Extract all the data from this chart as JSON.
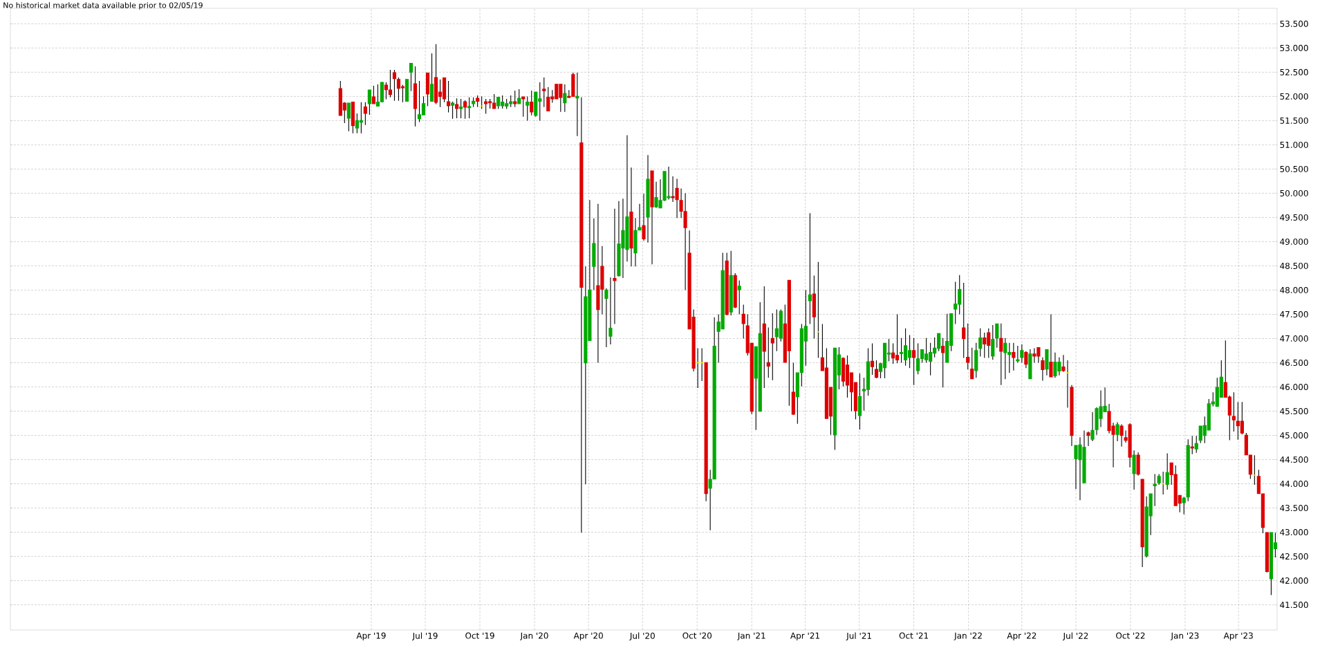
{
  "chart_data": {
    "type": "candlestick",
    "annotations": [
      "No historical market data available prior to 02/05/19"
    ],
    "grid": true,
    "xlim": [
      "2017-08-01",
      "2023-06-05"
    ],
    "ylim": [
      40.98,
      53.82
    ],
    "xticks": [
      {
        "value": "2019-04-01",
        "label": "Apr '19"
      },
      {
        "value": "2019-07-01",
        "label": "Jul '19"
      },
      {
        "value": "2019-10-01",
        "label": "Oct '19"
      },
      {
        "value": "2020-01-01",
        "label": "Jan '20"
      },
      {
        "value": "2020-04-01",
        "label": "Apr '20"
      },
      {
        "value": "2020-07-01",
        "label": "Jul '20"
      },
      {
        "value": "2020-10-01",
        "label": "Oct '20"
      },
      {
        "value": "2021-01-01",
        "label": "Jan '21"
      },
      {
        "value": "2021-04-01",
        "label": "Apr '21"
      },
      {
        "value": "2021-07-01",
        "label": "Jul '21"
      },
      {
        "value": "2021-10-01",
        "label": "Oct '21"
      },
      {
        "value": "2022-01-01",
        "label": "Jan '22"
      },
      {
        "value": "2022-04-01",
        "label": "Apr '22"
      },
      {
        "value": "2022-07-01",
        "label": "Jul '22"
      },
      {
        "value": "2022-10-01",
        "label": "Oct '22"
      },
      {
        "value": "2023-01-01",
        "label": "Jan '23"
      },
      {
        "value": "2023-04-01",
        "label": "Apr '23"
      }
    ],
    "yticks": [
      {
        "value": 41.5,
        "label": "41.500"
      },
      {
        "value": 42.0,
        "label": "42.000"
      },
      {
        "value": 42.5,
        "label": "42.500"
      },
      {
        "value": 43.0,
        "label": "43.000"
      },
      {
        "value": 43.5,
        "label": "43.500"
      },
      {
        "value": 44.0,
        "label": "44.000"
      },
      {
        "value": 44.5,
        "label": "44.500"
      },
      {
        "value": 45.0,
        "label": "45.000"
      },
      {
        "value": 45.5,
        "label": "45.500"
      },
      {
        "value": 46.0,
        "label": "46.000"
      },
      {
        "value": 46.5,
        "label": "46.500"
      },
      {
        "value": 47.0,
        "label": "47.000"
      },
      {
        "value": 47.5,
        "label": "47.500"
      },
      {
        "value": 48.0,
        "label": "48.000"
      },
      {
        "value": 48.5,
        "label": "48.500"
      },
      {
        "value": 49.0,
        "label": "49.000"
      },
      {
        "value": 49.5,
        "label": "49.500"
      },
      {
        "value": 50.0,
        "label": "50.000"
      },
      {
        "value": 50.5,
        "label": "50.500"
      },
      {
        "value": 51.0,
        "label": "51.000"
      },
      {
        "value": 51.5,
        "label": "51.500"
      },
      {
        "value": 52.0,
        "label": "52.000"
      },
      {
        "value": 52.5,
        "label": "52.500"
      },
      {
        "value": 53.0,
        "label": "53.000"
      },
      {
        "value": 53.5,
        "label": "53.500"
      }
    ],
    "x": [
      "2019-02-08",
      "2019-02-15",
      "2019-02-22",
      "2019-03-01",
      "2019-03-08",
      "2019-03-15",
      "2019-03-22",
      "2019-03-29",
      "2019-04-05",
      "2019-04-12",
      "2019-04-19",
      "2019-04-26",
      "2019-05-03",
      "2019-05-10",
      "2019-05-17",
      "2019-05-24",
      "2019-05-31",
      "2019-06-07",
      "2019-06-14",
      "2019-06-21",
      "2019-06-28",
      "2019-07-05",
      "2019-07-12",
      "2019-07-19",
      "2019-07-26",
      "2019-08-02",
      "2019-08-09",
      "2019-08-16",
      "2019-08-23",
      "2019-08-30",
      "2019-09-06",
      "2019-09-13",
      "2019-09-20",
      "2019-09-27",
      "2019-10-04",
      "2019-10-11",
      "2019-10-18",
      "2019-10-25",
      "2019-11-01",
      "2019-11-08",
      "2019-11-15",
      "2019-11-22",
      "2019-11-29",
      "2019-12-06",
      "2019-12-13",
      "2019-12-20",
      "2019-12-27",
      "2020-01-03",
      "2020-01-10",
      "2020-01-17",
      "2020-01-24",
      "2020-01-31",
      "2020-02-07",
      "2020-02-14",
      "2020-02-21",
      "2020-02-28",
      "2020-03-06",
      "2020-03-13",
      "2020-03-20",
      "2020-03-27",
      "2020-04-03",
      "2020-04-10",
      "2020-04-17",
      "2020-04-24",
      "2020-05-01",
      "2020-05-08",
      "2020-05-15",
      "2020-05-22",
      "2020-05-29",
      "2020-06-05",
      "2020-06-12",
      "2020-06-19",
      "2020-06-26",
      "2020-07-03",
      "2020-07-10",
      "2020-07-17",
      "2020-07-24",
      "2020-07-31",
      "2020-08-07",
      "2020-08-14",
      "2020-08-21",
      "2020-08-28",
      "2020-09-04",
      "2020-09-11",
      "2020-09-18",
      "2020-09-25",
      "2020-10-02",
      "2020-10-09",
      "2020-10-16",
      "2020-10-23",
      "2020-10-30",
      "2020-11-06",
      "2020-11-13",
      "2020-11-20",
      "2020-11-27",
      "2020-12-04",
      "2020-12-11",
      "2020-12-18",
      "2020-12-25",
      "2021-01-01",
      "2021-01-08",
      "2021-01-15",
      "2021-01-22",
      "2021-01-29",
      "2021-02-05",
      "2021-02-12",
      "2021-02-19",
      "2021-02-26",
      "2021-03-05",
      "2021-03-12",
      "2021-03-19",
      "2021-03-26",
      "2021-04-02",
      "2021-04-09",
      "2021-04-16",
      "2021-04-23",
      "2021-04-30",
      "2021-05-07",
      "2021-05-14",
      "2021-05-21",
      "2021-05-28",
      "2021-06-04",
      "2021-06-11",
      "2021-06-18",
      "2021-06-25",
      "2021-07-02",
      "2021-07-09",
      "2021-07-16",
      "2021-07-23",
      "2021-07-30",
      "2021-08-06",
      "2021-08-13",
      "2021-08-20",
      "2021-08-27",
      "2021-09-03",
      "2021-09-10",
      "2021-09-17",
      "2021-09-24",
      "2021-10-01",
      "2021-10-08",
      "2021-10-15",
      "2021-10-22",
      "2021-10-29",
      "2021-11-05",
      "2021-11-12",
      "2021-11-19",
      "2021-11-26",
      "2021-12-03",
      "2021-12-10",
      "2021-12-17",
      "2021-12-24",
      "2021-12-31",
      "2022-01-07",
      "2022-01-14",
      "2022-01-21",
      "2022-01-28",
      "2022-02-04",
      "2022-02-11",
      "2022-02-18",
      "2022-02-25",
      "2022-03-04",
      "2022-03-11",
      "2022-03-18",
      "2022-03-25",
      "2022-04-01",
      "2022-04-08",
      "2022-04-15",
      "2022-04-22",
      "2022-04-29",
      "2022-05-06",
      "2022-05-13",
      "2022-05-20",
      "2022-05-27",
      "2022-06-03",
      "2022-06-10",
      "2022-06-17",
      "2022-06-24",
      "2022-07-01",
      "2022-07-08",
      "2022-07-15",
      "2022-07-22",
      "2022-07-29",
      "2022-08-05",
      "2022-08-12",
      "2022-08-19",
      "2022-08-26",
      "2022-09-02",
      "2022-09-09",
      "2022-09-16",
      "2022-09-23",
      "2022-09-30",
      "2022-10-07",
      "2022-10-14",
      "2022-10-21",
      "2022-10-28",
      "2022-11-04",
      "2022-11-11",
      "2022-11-18",
      "2022-11-25",
      "2022-12-02",
      "2022-12-09",
      "2022-12-16",
      "2022-12-23",
      "2022-12-30",
      "2023-01-06",
      "2023-01-13",
      "2023-01-20",
      "2023-01-27",
      "2023-02-03",
      "2023-02-10",
      "2023-02-17",
      "2023-02-24",
      "2023-03-03",
      "2023-03-10",
      "2023-03-17",
      "2023-03-24",
      "2023-03-31",
      "2023-04-07",
      "2023-04-14",
      "2023-04-21",
      "2023-04-28",
      "2023-05-05",
      "2023-05-12",
      "2023-05-19",
      "2023-05-26",
      "2023-06-02"
    ],
    "ohlc": [
      [
        52.16,
        52.32,
        51.61,
        51.61
      ],
      [
        51.86,
        51.88,
        51.45,
        51.72
      ],
      [
        51.55,
        51.86,
        51.28,
        51.86
      ],
      [
        51.88,
        51.88,
        51.24,
        51.4
      ],
      [
        51.35,
        51.65,
        51.24,
        51.5
      ],
      [
        51.47,
        51.88,
        51.24,
        51.5
      ],
      [
        51.78,
        51.88,
        51.41,
        51.65
      ],
      [
        51.85,
        52.13,
        51.62,
        52.13
      ],
      [
        51.99,
        52.22,
        51.85,
        51.85
      ],
      [
        51.8,
        52.25,
        51.79,
        51.88
      ],
      [
        51.89,
        52.29,
        51.88,
        52.29
      ],
      [
        52.23,
        52.29,
        51.94,
        52.14
      ],
      [
        52.13,
        52.55,
        51.98,
        52.04
      ],
      [
        52.49,
        52.55,
        51.91,
        52.37
      ],
      [
        52.35,
        52.39,
        51.91,
        52.17
      ],
      [
        52.2,
        52.24,
        51.88,
        52.18
      ],
      [
        51.9,
        52.35,
        51.9,
        52.35
      ],
      [
        52.5,
        52.68,
        52.11,
        52.68
      ],
      [
        52.26,
        52.62,
        51.38,
        51.75
      ],
      [
        51.54,
        52.32,
        51.47,
        51.62
      ],
      [
        51.62,
        52.0,
        51.62,
        51.85
      ],
      [
        52.48,
        52.48,
        51.8,
        52.05
      ],
      [
        51.9,
        52.89,
        51.9,
        52.25
      ],
      [
        52.39,
        53.08,
        51.84,
        51.88
      ],
      [
        52.09,
        52.35,
        51.78,
        52.0
      ],
      [
        52.38,
        52.38,
        51.88,
        51.95
      ],
      [
        51.89,
        52.32,
        51.67,
        51.81
      ],
      [
        51.82,
        51.89,
        51.54,
        51.86
      ],
      [
        51.83,
        51.96,
        51.55,
        51.75
      ],
      [
        51.75,
        51.95,
        51.55,
        51.78
      ],
      [
        51.89,
        51.92,
        51.54,
        51.78
      ],
      [
        51.77,
        51.98,
        51.55,
        51.79
      ],
      [
        51.85,
        51.98,
        51.78,
        51.9
      ],
      [
        51.96,
        52.02,
        51.78,
        51.9
      ],
      [
        51.8,
        52.0,
        51.74,
        51.8
      ],
      [
        51.89,
        51.95,
        51.64,
        51.85
      ],
      [
        51.89,
        51.95,
        51.75,
        51.87
      ],
      [
        51.86,
        52.05,
        51.75,
        51.75
      ],
      [
        51.81,
        51.98,
        51.74,
        51.98
      ],
      [
        51.81,
        52.02,
        51.75,
        51.88
      ],
      [
        51.8,
        51.95,
        51.74,
        51.85
      ],
      [
        51.85,
        52.02,
        51.78,
        51.89
      ],
      [
        51.89,
        52.12,
        51.78,
        51.85
      ],
      [
        51.85,
        52.15,
        51.85,
        51.96
      ],
      [
        51.99,
        51.99,
        51.58,
        51.95
      ],
      [
        51.82,
        52.0,
        51.5,
        51.88
      ],
      [
        51.88,
        52.12,
        51.61,
        51.68
      ],
      [
        51.61,
        52.09,
        51.58,
        52.09
      ],
      [
        51.9,
        52.29,
        51.5,
        51.95
      ],
      [
        52.15,
        52.39,
        51.78,
        52.12
      ],
      [
        51.98,
        52.19,
        51.7,
        51.7
      ],
      [
        51.99,
        52.13,
        51.87,
        51.95
      ],
      [
        52.25,
        52.25,
        51.95,
        51.95
      ],
      [
        52.25,
        52.25,
        51.68,
        51.98
      ],
      [
        51.87,
        52.25,
        51.68,
        52.06
      ],
      [
        52.0,
        52.13,
        51.97,
        51.98
      ],
      [
        52.45,
        52.49,
        52.0,
        52.0
      ],
      [
        51.97,
        52.49,
        51.18,
        52.0
      ],
      [
        51.04,
        51.98,
        42.99,
        48.06
      ],
      [
        46.5,
        48.49,
        43.99,
        47.86
      ],
      [
        46.96,
        49.86,
        46.96,
        48.0
      ],
      [
        48.49,
        49.48,
        48.0,
        48.96
      ],
      [
        48.09,
        49.78,
        46.5,
        47.6
      ],
      [
        48.49,
        48.91,
        47.5,
        48.02
      ],
      [
        47.83,
        48.04,
        46.82,
        48.0
      ],
      [
        47.05,
        48.26,
        46.88,
        47.21
      ],
      [
        48.24,
        49.68,
        47.3,
        48.2
      ],
      [
        48.3,
        49.84,
        48.28,
        48.95
      ],
      [
        48.87,
        49.89,
        48.25,
        49.23
      ],
      [
        48.84,
        51.2,
        48.59,
        49.51
      ],
      [
        49.61,
        50.53,
        48.49,
        48.87
      ],
      [
        48.77,
        49.49,
        48.49,
        49.23
      ],
      [
        49.24,
        49.78,
        49.24,
        49.29
      ],
      [
        49.33,
        49.99,
        49.02,
        49.06
      ],
      [
        49.51,
        50.79,
        48.98,
        50.29
      ],
      [
        50.46,
        50.46,
        48.53,
        49.72
      ],
      [
        49.72,
        50.24,
        49.7,
        49.91
      ],
      [
        49.7,
        50.29,
        49.7,
        49.85
      ],
      [
        49.86,
        50.45,
        49.84,
        50.45
      ],
      [
        49.91,
        50.55,
        49.87,
        49.93
      ],
      [
        49.93,
        50.35,
        49.82,
        49.91
      ],
      [
        50.1,
        50.3,
        49.49,
        49.87
      ],
      [
        49.85,
        50.1,
        49.49,
        49.63
      ],
      [
        49.62,
        50.0,
        48.0,
        49.29
      ],
      [
        48.76,
        49.23,
        47.2,
        47.2
      ],
      [
        47.44,
        47.6,
        46.32,
        46.39
      ],
      [
        46.5,
        46.8,
        45.98,
        46.5
      ],
      [
        46.5,
        46.8,
        46.12,
        46.5
      ],
      [
        46.5,
        46.5,
        43.64,
        43.8
      ],
      [
        43.91,
        44.29,
        43.04,
        44.09
      ],
      [
        44.1,
        47.44,
        44.1,
        46.84
      ],
      [
        47.15,
        47.5,
        46.5,
        47.34
      ],
      [
        47.2,
        48.77,
        47.2,
        48.4
      ],
      [
        48.6,
        48.77,
        47.48,
        47.5
      ],
      [
        47.55,
        48.81,
        47.48,
        48.3
      ],
      [
        48.3,
        48.35,
        47.63,
        47.65
      ],
      [
        48.01,
        48.2,
        47.5,
        48.08
      ],
      [
        47.5,
        47.7,
        47.0,
        47.31
      ],
      [
        47.26,
        47.5,
        46.65,
        46.71
      ],
      [
        46.9,
        46.9,
        45.44,
        45.5
      ],
      [
        46.18,
        46.83,
        45.11,
        46.83
      ],
      [
        45.5,
        47.75,
        45.5,
        47.1
      ],
      [
        47.3,
        48.08,
        45.98,
        46.74
      ],
      [
        46.5,
        47.23,
        46.19,
        46.43
      ],
      [
        47.0,
        47.52,
        46.14,
        46.91
      ],
      [
        47.04,
        47.6,
        46.74,
        47.2
      ],
      [
        47.01,
        47.6,
        46.94,
        47.56
      ],
      [
        47.3,
        47.7,
        46.51,
        46.51
      ],
      [
        48.2,
        48.2,
        45.61,
        46.75
      ],
      [
        45.89,
        46.5,
        45.42,
        45.44
      ],
      [
        45.8,
        46.29,
        45.24,
        46.29
      ],
      [
        46.3,
        47.3,
        46.01,
        47.2
      ],
      [
        46.95,
        48.0,
        46.44,
        47.25
      ],
      [
        47.78,
        49.59,
        47.3,
        47.9
      ],
      [
        47.92,
        48.3,
        47.0,
        47.45
      ],
      [
        47.14,
        48.58,
        46.6,
        47.14
      ],
      [
        46.6,
        47.3,
        46.34,
        46.34
      ],
      [
        46.39,
        46.8,
        45.35,
        45.35
      ],
      [
        45.99,
        45.99,
        45.01,
        45.4
      ],
      [
        45.01,
        46.8,
        44.7,
        46.8
      ],
      [
        46.25,
        46.82,
        45.95,
        46.66
      ],
      [
        46.59,
        46.61,
        46.01,
        46.12
      ],
      [
        46.45,
        46.65,
        45.78,
        46.04
      ],
      [
        46.29,
        46.29,
        45.5,
        45.9
      ],
      [
        46.09,
        46.09,
        45.33,
        45.51
      ],
      [
        45.41,
        46.28,
        45.12,
        45.8
      ],
      [
        45.92,
        46.19,
        45.51,
        45.95
      ],
      [
        45.95,
        46.8,
        45.82,
        46.52
      ],
      [
        46.53,
        46.9,
        46.25,
        46.42
      ],
      [
        46.36,
        46.55,
        46.18,
        46.2
      ],
      [
        46.32,
        46.5,
        46.18,
        46.48
      ],
      [
        46.4,
        46.9,
        46.18,
        46.9
      ],
      [
        46.68,
        46.99,
        46.53,
        46.7
      ],
      [
        46.7,
        46.9,
        46.48,
        46.6
      ],
      [
        46.65,
        47.5,
        46.49,
        46.56
      ],
      [
        46.69,
        47.01,
        46.5,
        46.71
      ],
      [
        46.56,
        47.21,
        46.44,
        46.85
      ],
      [
        46.61,
        47.07,
        46.39,
        46.75
      ],
      [
        46.75,
        47.01,
        46.04,
        46.61
      ],
      [
        46.34,
        46.9,
        46.26,
        46.58
      ],
      [
        46.59,
        46.77,
        46.5,
        46.77
      ],
      [
        46.56,
        47.01,
        46.5,
        46.68
      ],
      [
        46.53,
        46.91,
        46.24,
        46.71
      ],
      [
        46.7,
        47.02,
        46.61,
        46.8
      ],
      [
        46.8,
        47.11,
        46.74,
        47.1
      ],
      [
        46.84,
        47.01,
        45.99,
        46.71
      ],
      [
        46.51,
        47.51,
        46.51,
        46.94
      ],
      [
        46.86,
        47.51,
        46.74,
        47.51
      ],
      [
        47.61,
        48.17,
        47.3,
        47.71
      ],
      [
        47.71,
        48.31,
        47.5,
        48.01
      ],
      [
        47.22,
        48.15,
        46.6,
        47.0
      ],
      [
        46.61,
        47.31,
        46.36,
        46.51
      ],
      [
        46.37,
        46.81,
        46.17,
        46.17
      ],
      [
        46.34,
        46.91,
        46.19,
        46.75
      ],
      [
        46.8,
        47.21,
        46.63,
        47.01
      ],
      [
        47.01,
        47.12,
        46.6,
        46.89
      ],
      [
        47.12,
        47.21,
        46.6,
        46.86
      ],
      [
        46.64,
        47.28,
        46.56,
        46.98
      ],
      [
        47.01,
        47.3,
        46.81,
        47.3
      ],
      [
        47.0,
        47.31,
        46.04,
        46.74
      ],
      [
        46.71,
        47.01,
        46.16,
        46.9
      ],
      [
        46.67,
        46.91,
        46.29,
        46.71
      ],
      [
        46.71,
        46.91,
        46.34,
        46.61
      ],
      [
        46.54,
        46.85,
        46.5,
        46.56
      ],
      [
        46.61,
        46.88,
        46.5,
        46.75
      ],
      [
        46.71,
        46.74,
        46.39,
        46.47
      ],
      [
        46.17,
        46.78,
        46.17,
        46.68
      ],
      [
        46.68,
        46.8,
        46.5,
        46.64
      ],
      [
        46.81,
        46.81,
        46.5,
        46.64
      ],
      [
        46.54,
        46.61,
        46.13,
        46.36
      ],
      [
        46.37,
        46.78,
        46.24,
        46.77
      ],
      [
        46.51,
        47.5,
        46.21,
        46.21
      ],
      [
        46.23,
        46.71,
        46.19,
        46.51
      ],
      [
        46.33,
        46.61,
        46.24,
        46.51
      ],
      [
        46.41,
        46.66,
        46.31,
        46.34
      ],
      [
        46.29,
        46.55,
        45.57,
        46.29
      ],
      [
        45.99,
        46.04,
        44.78,
        45.0
      ],
      [
        44.52,
        44.79,
        43.89,
        44.79
      ],
      [
        44.5,
        44.96,
        43.66,
        44.8
      ],
      [
        44.02,
        45.1,
        44.02,
        44.75
      ],
      [
        45.05,
        45.08,
        44.78,
        45.0
      ],
      [
        44.92,
        45.48,
        44.88,
        45.1
      ],
      [
        45.12,
        45.58,
        45.01,
        45.55
      ],
      [
        45.35,
        45.93,
        45.17,
        45.59
      ],
      [
        45.49,
        45.99,
        45.49,
        45.6
      ],
      [
        45.49,
        45.65,
        45.04,
        45.1
      ],
      [
        45.19,
        45.26,
        44.34,
        45.02
      ],
      [
        45.02,
        45.27,
        44.88,
        45.22
      ],
      [
        45.19,
        45.23,
        44.77,
        45.0
      ],
      [
        44.95,
        45.1,
        44.85,
        44.9
      ],
      [
        45.22,
        45.25,
        44.34,
        44.55
      ],
      [
        44.21,
        44.69,
        43.88,
        44.59
      ],
      [
        44.59,
        44.65,
        44.17,
        44.2
      ],
      [
        44.09,
        44.09,
        42.28,
        42.7
      ],
      [
        42.51,
        43.74,
        42.48,
        43.52
      ],
      [
        43.34,
        43.79,
        42.94,
        43.79
      ],
      [
        43.96,
        44.2,
        43.54,
        43.99
      ],
      [
        44.02,
        44.2,
        43.98,
        44.15
      ],
      [
        44.0,
        44.25,
        43.78,
        44.0
      ],
      [
        43.99,
        44.63,
        43.88,
        44.23
      ],
      [
        44.43,
        44.43,
        43.98,
        44.19
      ],
      [
        44.19,
        44.38,
        43.55,
        43.55
      ],
      [
        43.76,
        43.76,
        43.41,
        43.6
      ],
      [
        43.61,
        43.73,
        43.37,
        43.7
      ],
      [
        43.73,
        44.92,
        43.64,
        44.79
      ],
      [
        44.76,
        44.99,
        44.61,
        44.74
      ],
      [
        44.72,
        44.99,
        44.64,
        44.83
      ],
      [
        44.9,
        45.19,
        44.84,
        45.19
      ],
      [
        45.0,
        45.39,
        44.84,
        45.2
      ],
      [
        45.11,
        45.75,
        45.11,
        45.65
      ],
      [
        45.65,
        45.89,
        45.6,
        45.69
      ],
      [
        45.6,
        46.19,
        45.6,
        45.99
      ],
      [
        45.79,
        46.55,
        45.78,
        46.2
      ],
      [
        46.09,
        46.96,
        45.79,
        45.79
      ],
      [
        45.79,
        45.82,
        44.9,
        45.42
      ],
      [
        45.39,
        45.89,
        45.08,
        45.32
      ],
      [
        45.29,
        45.69,
        44.91,
        45.2
      ],
      [
        45.29,
        45.69,
        45.02,
        45.05
      ],
      [
        45.0,
        45.05,
        44.6,
        44.6
      ],
      [
        44.59,
        44.59,
        44.1,
        44.2
      ],
      [
        44.18,
        44.59,
        43.98,
        44.18
      ],
      [
        44.15,
        44.29,
        43.8,
        43.8
      ],
      [
        43.79,
        43.79,
        42.98,
        43.1
      ],
      [
        42.99,
        42.99,
        42.17,
        42.19
      ],
      [
        42.04,
        42.99,
        41.7,
        42.99
      ],
      [
        42.66,
        42.99,
        42.48,
        42.78
      ]
    ],
    "colors": [
      "#dd0000",
      "#dd0000",
      "#00aa00",
      "#dd0000",
      "#00aa00",
      "#00aa00",
      "#dd0000",
      "#00aa00",
      "#dd0000",
      "#00aa00",
      "#00aa00",
      "#dd0000",
      "#dd0000",
      "#dd0000",
      "#dd0000",
      "#dd0000",
      "#00aa00",
      "#00aa00",
      "#dd0000",
      "#00aa00",
      "#00aa00",
      "#dd0000",
      "#00aa00",
      "#dd0000",
      "#dd0000",
      "#dd0000",
      "#dd0000",
      "#00aa00",
      "#dd0000",
      "#00aa00",
      "#dd0000",
      "#00aa00",
      "#00aa00",
      "#dd0000",
      "#ffee00",
      "#dd0000",
      "#dd0000",
      "#dd0000",
      "#00aa00",
      "#00aa00",
      "#00aa00",
      "#00aa00",
      "#dd0000",
      "#00aa00",
      "#dd0000",
      "#00aa00",
      "#dd0000",
      "#00aa00",
      "#00aa00",
      "#dd0000",
      "#dd0000",
      "#dd0000",
      "#dd0000",
      "#dd0000",
      "#00aa00",
      "#dd0000",
      "#dd0000",
      "#00aa00",
      "#dd0000",
      "#00aa00",
      "#00aa00",
      "#00aa00",
      "#dd0000",
      "#dd0000",
      "#00aa00",
      "#00aa00",
      "#dd0000",
      "#00aa00",
      "#00aa00",
      "#00aa00",
      "#dd0000",
      "#00aa00",
      "#00aa00",
      "#dd0000",
      "#00aa00",
      "#dd0000",
      "#00aa00",
      "#00aa00",
      "#00aa00",
      "#00aa00",
      "#dd0000",
      "#dd0000",
      "#dd0000",
      "#dd0000",
      "#dd0000",
      "#dd0000",
      "#ffee00",
      "#ffee00",
      "#dd0000",
      "#00aa00",
      "#00aa00",
      "#00aa00",
      "#00aa00",
      "#dd0000",
      "#00aa00",
      "#dd0000",
      "#00aa00",
      "#dd0000",
      "#dd0000",
      "#dd0000",
      "#00aa00",
      "#00aa00",
      "#dd0000",
      "#dd0000",
      "#dd0000",
      "#00aa00",
      "#00aa00",
      "#dd0000",
      "#dd0000",
      "#dd0000",
      "#00aa00",
      "#00aa00",
      "#00aa00",
      "#00aa00",
      "#dd0000",
      "#ffee00",
      "#dd0000",
      "#dd0000",
      "#dd0000",
      "#00aa00",
      "#00aa00",
      "#dd0000",
      "#dd0000",
      "#dd0000",
      "#dd0000",
      "#00aa00",
      "#00aa00",
      "#00aa00",
      "#dd0000",
      "#dd0000",
      "#00aa00",
      "#00aa00",
      "#00aa00",
      "#dd0000",
      "#dd0000",
      "#00aa00",
      "#00aa00",
      "#00aa00",
      "#dd0000",
      "#00aa00",
      "#00aa00",
      "#00aa00",
      "#00aa00",
      "#00aa00",
      "#00aa00",
      "#dd0000",
      "#00aa00",
      "#00aa00",
      "#00aa00",
      "#00aa00",
      "#dd0000",
      "#dd0000",
      "#dd0000",
      "#00aa00",
      "#00aa00",
      "#dd0000",
      "#dd0000",
      "#00aa00",
      "#00aa00",
      "#dd0000",
      "#00aa00",
      "#00aa00",
      "#dd0000",
      "#00aa00",
      "#00aa00",
      "#dd0000",
      "#00aa00",
      "#dd0000",
      "#dd0000",
      "#dd0000",
      "#00aa00",
      "#dd0000",
      "#00aa00",
      "#00aa00",
      "#dd0000",
      "#ffee00",
      "#dd0000",
      "#00aa00",
      "#00aa00",
      "#00aa00",
      "#dd0000",
      "#00aa00",
      "#00aa00",
      "#00aa00",
      "#00aa00",
      "#dd0000",
      "#dd0000",
      "#00aa00",
      "#dd0000",
      "#dd0000",
      "#dd0000",
      "#00aa00",
      "#dd0000",
      "#dd0000",
      "#00aa00",
      "#00aa00",
      "#00aa00",
      "#00aa00",
      "#ffee00",
      "#00aa00",
      "#dd0000",
      "#dd0000",
      "#dd0000",
      "#00aa00",
      "#00aa00",
      "#dd0000",
      "#00aa00",
      "#00aa00",
      "#00aa00",
      "#00aa00",
      "#00aa00",
      "#00aa00",
      "#00aa00",
      "#dd0000",
      "#dd0000",
      "#dd0000",
      "#dd0000",
      "#dd0000",
      "#dd0000",
      "#dd0000",
      "#ffee00",
      "#dd0000",
      "#dd0000",
      "#dd0000",
      "#00aa00",
      "#00aa00"
    ]
  }
}
